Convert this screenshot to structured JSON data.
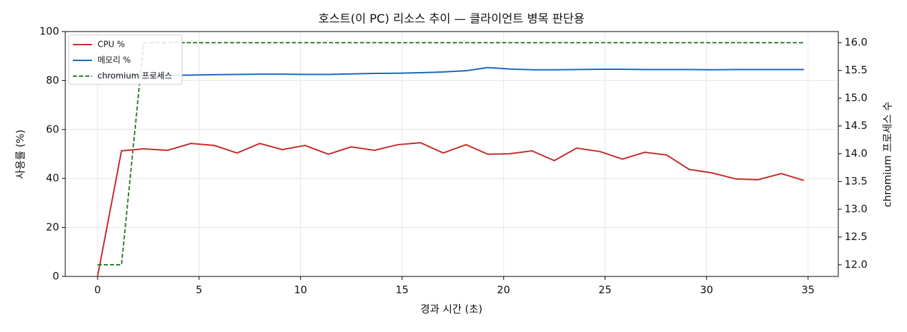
{
  "chart_data": {
    "type": "line",
    "title": "호스트(이 PC) 리소스 추이 — 클라이언트 병목 판단용",
    "xlabel": "경과 시간 (초)",
    "ylabel": "사용률 (%)",
    "y2label": "chromium 프로세스 수",
    "x": [
      0,
      1.18,
      2.27,
      3.45,
      4.6,
      5.75,
      6.87,
      7.99,
      9.1,
      10.22,
      11.37,
      12.49,
      13.64,
      14.79,
      15.91,
      17.03,
      18.15,
      19.23,
      20.31,
      21.4,
      22.5,
      23.6,
      24.75,
      25.86,
      26.95,
      28.03,
      29.15,
      30.26,
      31.45,
      32.53,
      33.68,
      34.8
    ],
    "series": [
      {
        "name": "CPU %",
        "color": "#c62828",
        "linestyle": "solid",
        "values": [
          0,
          51.3,
          52.1,
          51.5,
          54.3,
          53.5,
          50.4,
          54.3,
          51.8,
          53.5,
          49.9,
          52.9,
          51.5,
          53.8,
          54.6,
          50.4,
          53.8,
          49.9,
          50.1,
          51.3,
          47.3,
          52.4,
          51,
          47.9,
          50.7,
          49.6,
          43.7,
          42.3,
          39.8,
          39.5,
          42,
          39.2
        ]
      },
      {
        "name": "메모리 %",
        "color": "#1565c0",
        "linestyle": "solid",
        "values": [
          81.5,
          81.9,
          82.0,
          82.1,
          82.2,
          82.4,
          82.5,
          82.6,
          82.6,
          82.5,
          82.5,
          82.7,
          82.9,
          83.0,
          83.2,
          83.5,
          84.0,
          85.3,
          84.7,
          84.4,
          84.4,
          84.5,
          84.6,
          84.6,
          84.5,
          84.5,
          84.5,
          84.4,
          84.5,
          84.5,
          84.5,
          84.5
        ]
      },
      {
        "name": "chromium 프로세스",
        "color": "#2e7d32",
        "linestyle": "dashed",
        "axis": "y2",
        "values": [
          12,
          12,
          16,
          16,
          16,
          16,
          16,
          16,
          16,
          16,
          16,
          16,
          16,
          16,
          16,
          16,
          16,
          16,
          16,
          16,
          16,
          16,
          16,
          16,
          16,
          16,
          16,
          16,
          16,
          16,
          16,
          16
        ]
      }
    ],
    "xlim": [
      -1.59,
      36.49
    ],
    "xticks": [
      0,
      5,
      10,
      15,
      20,
      25,
      30,
      35
    ],
    "ylim": [
      0,
      100
    ],
    "yticks": [
      0,
      20,
      40,
      60,
      80,
      100
    ],
    "y2lim": [
      11.79,
      16.2
    ],
    "y2ticks": [
      {
        "value": 12,
        "label": "12.0"
      },
      {
        "value": 12.5,
        "label": "12.5"
      },
      {
        "value": 13,
        "label": "13.0"
      },
      {
        "value": 13.5,
        "label": "13.5"
      },
      {
        "value": 14,
        "label": "14.0"
      },
      {
        "value": 14.5,
        "label": "14.5"
      },
      {
        "value": 15,
        "label": "15.0"
      },
      {
        "value": 15.5,
        "label": "15.5"
      },
      {
        "value": 16,
        "label": "16.0"
      }
    ],
    "grid": true,
    "legend": "upper left"
  }
}
